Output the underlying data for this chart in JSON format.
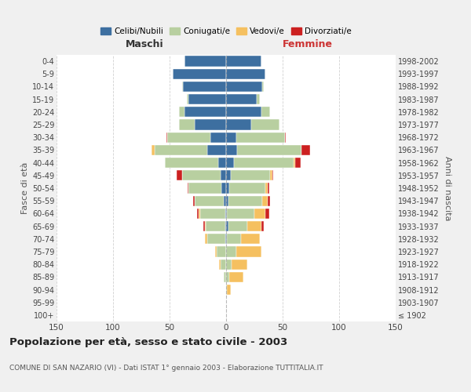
{
  "age_groups": [
    "100+",
    "95-99",
    "90-94",
    "85-89",
    "80-84",
    "75-79",
    "70-74",
    "65-69",
    "60-64",
    "55-59",
    "50-54",
    "45-49",
    "40-44",
    "35-39",
    "30-34",
    "25-29",
    "20-24",
    "15-19",
    "10-14",
    "5-9",
    "0-4"
  ],
  "birth_years": [
    "≤ 1902",
    "1903-1907",
    "1908-1912",
    "1913-1917",
    "1918-1922",
    "1923-1927",
    "1928-1932",
    "1933-1937",
    "1938-1942",
    "1943-1947",
    "1948-1952",
    "1953-1957",
    "1958-1962",
    "1963-1967",
    "1968-1972",
    "1973-1977",
    "1978-1982",
    "1983-1987",
    "1988-1992",
    "1993-1997",
    "1998-2002"
  ],
  "male": {
    "celibi": [
      0,
      0,
      0,
      0,
      0,
      0,
      1,
      1,
      1,
      2,
      4,
      5,
      7,
      17,
      14,
      28,
      37,
      33,
      38,
      47,
      37
    ],
    "coniugati": [
      0,
      0,
      0,
      2,
      5,
      8,
      16,
      17,
      22,
      26,
      29,
      34,
      47,
      46,
      38,
      14,
      5,
      2,
      1,
      0,
      0
    ],
    "vedovi": [
      0,
      0,
      0,
      0,
      1,
      2,
      2,
      1,
      1,
      0,
      0,
      0,
      0,
      3,
      0,
      0,
      0,
      0,
      0,
      0,
      0
    ],
    "divorziati": [
      0,
      0,
      0,
      0,
      0,
      0,
      0,
      1,
      2,
      1,
      1,
      5,
      0,
      0,
      1,
      0,
      0,
      0,
      0,
      0,
      0
    ]
  },
  "female": {
    "nubili": [
      0,
      0,
      0,
      0,
      0,
      0,
      1,
      2,
      1,
      2,
      3,
      4,
      7,
      10,
      9,
      22,
      31,
      27,
      32,
      35,
      31
    ],
    "coniugate": [
      0,
      0,
      1,
      3,
      5,
      9,
      12,
      17,
      24,
      30,
      32,
      35,
      53,
      57,
      43,
      25,
      8,
      3,
      1,
      0,
      0
    ],
    "vedove": [
      0,
      0,
      3,
      12,
      14,
      22,
      17,
      12,
      10,
      5,
      2,
      2,
      1,
      0,
      0,
      0,
      0,
      0,
      0,
      0,
      0
    ],
    "divorziate": [
      0,
      0,
      0,
      0,
      0,
      0,
      0,
      2,
      3,
      2,
      1,
      1,
      5,
      7,
      1,
      0,
      0,
      0,
      0,
      0,
      0
    ]
  },
  "colors": {
    "celibi": "#3d6fa0",
    "coniugati": "#b8cfa0",
    "vedovi": "#f5c060",
    "divorziati": "#cc2020"
  },
  "xlim": 150,
  "title": "Popolazione per età, sesso e stato civile - 2003",
  "subtitle": "COMUNE DI SAN NAZARIO (VI) - Dati ISTAT 1° gennaio 2003 - Elaborazione TUTTITALIA.IT",
  "ylabel_left": "Fasce di età",
  "ylabel_right": "Anni di nascita",
  "xlabel_left": "Maschi",
  "xlabel_right": "Femmine",
  "legend_labels": [
    "Celibi/Nubili",
    "Coniugati/e",
    "Vedovi/e",
    "Divorziati/e"
  ],
  "bg_color": "#f0f0f0",
  "plot_bg_color": "#ffffff"
}
